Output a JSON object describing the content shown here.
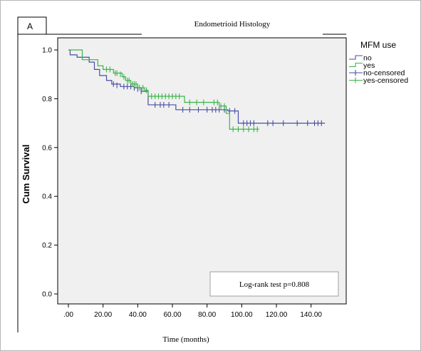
{
  "chart_data": {
    "type": "line",
    "panel_label": "A",
    "title": "Endometrioid  Histology",
    "xlabel": "Time (months)",
    "ylabel": "Cum Survival",
    "xlim": [
      0,
      150
    ],
    "ylim": [
      0,
      1.0
    ],
    "x_ticks": [
      0,
      20,
      40,
      60,
      80,
      100,
      120,
      140
    ],
    "x_tick_labels": [
      ".00",
      "20.00",
      "40.00",
      "60.00",
      "80.00",
      "100.00",
      "120.00",
      "140.00"
    ],
    "y_ticks": [
      0,
      0.2,
      0.4,
      0.6,
      0.8,
      1.0
    ],
    "y_tick_labels": [
      "0.0",
      "0.2",
      "0.4",
      "0.6",
      "0.8",
      "1.0"
    ],
    "grid": false,
    "legend": {
      "title": "MFM use",
      "placement": "right",
      "entries": [
        "no",
        "yes",
        "no-censored",
        "yes-censored"
      ]
    },
    "annotation": "Log-rank test p=0.808",
    "colors": {
      "no": "#4a4ea2",
      "yes": "#3cb44b",
      "plot_bg": "#f0f0f0"
    },
    "series": [
      {
        "name": "no",
        "steps": [
          [
            0,
            1.0
          ],
          [
            1,
            0.98
          ],
          [
            5,
            0.97
          ],
          [
            12,
            0.95
          ],
          [
            15,
            0.92
          ],
          [
            18,
            0.895
          ],
          [
            22,
            0.875
          ],
          [
            25,
            0.86
          ],
          [
            30,
            0.85
          ],
          [
            38,
            0.845
          ],
          [
            42,
            0.83
          ],
          [
            46,
            0.775
          ],
          [
            62,
            0.755
          ],
          [
            92,
            0.75
          ],
          [
            98,
            0.7
          ],
          [
            148,
            0.7
          ]
        ],
        "censored": [
          [
            26,
            0.86
          ],
          [
            28,
            0.855
          ],
          [
            32,
            0.85
          ],
          [
            34,
            0.85
          ],
          [
            36,
            0.85
          ],
          [
            38,
            0.845
          ],
          [
            40,
            0.84
          ],
          [
            42,
            0.83
          ],
          [
            50,
            0.775
          ],
          [
            53,
            0.775
          ],
          [
            55,
            0.775
          ],
          [
            58,
            0.775
          ],
          [
            66,
            0.755
          ],
          [
            70,
            0.755
          ],
          [
            75,
            0.755
          ],
          [
            80,
            0.755
          ],
          [
            83,
            0.755
          ],
          [
            85,
            0.755
          ],
          [
            87,
            0.755
          ],
          [
            90,
            0.755
          ],
          [
            93,
            0.75
          ],
          [
            96,
            0.75
          ],
          [
            101,
            0.7
          ],
          [
            103,
            0.7
          ],
          [
            105,
            0.7
          ],
          [
            107,
            0.7
          ],
          [
            115,
            0.7
          ],
          [
            118,
            0.7
          ],
          [
            124,
            0.7
          ],
          [
            132,
            0.7
          ],
          [
            138,
            0.7
          ],
          [
            142,
            0.7
          ],
          [
            144,
            0.7
          ],
          [
            146,
            0.7
          ]
        ]
      },
      {
        "name": "yes",
        "steps": [
          [
            0,
            1.0
          ],
          [
            8,
            0.96
          ],
          [
            17,
            0.935
          ],
          [
            20,
            0.92
          ],
          [
            26,
            0.905
          ],
          [
            31,
            0.89
          ],
          [
            33,
            0.875
          ],
          [
            36,
            0.86
          ],
          [
            40,
            0.845
          ],
          [
            44,
            0.835
          ],
          [
            46,
            0.81
          ],
          [
            67,
            0.785
          ],
          [
            87,
            0.77
          ],
          [
            91,
            0.74
          ],
          [
            93,
            0.675
          ],
          [
            110,
            0.675
          ]
        ],
        "censored": [
          [
            22,
            0.92
          ],
          [
            24,
            0.92
          ],
          [
            27,
            0.905
          ],
          [
            28,
            0.905
          ],
          [
            30,
            0.9
          ],
          [
            32,
            0.89
          ],
          [
            34,
            0.875
          ],
          [
            35,
            0.875
          ],
          [
            37,
            0.86
          ],
          [
            38,
            0.86
          ],
          [
            39,
            0.86
          ],
          [
            41,
            0.845
          ],
          [
            43,
            0.845
          ],
          [
            45,
            0.835
          ],
          [
            48,
            0.81
          ],
          [
            50,
            0.81
          ],
          [
            52,
            0.81
          ],
          [
            54,
            0.81
          ],
          [
            56,
            0.81
          ],
          [
            58,
            0.81
          ],
          [
            60,
            0.81
          ],
          [
            62,
            0.81
          ],
          [
            64,
            0.81
          ],
          [
            70,
            0.785
          ],
          [
            74,
            0.785
          ],
          [
            78,
            0.785
          ],
          [
            84,
            0.785
          ],
          [
            86,
            0.785
          ],
          [
            88,
            0.77
          ],
          [
            90,
            0.77
          ],
          [
            95,
            0.675
          ],
          [
            98,
            0.675
          ],
          [
            101,
            0.675
          ],
          [
            104,
            0.675
          ],
          [
            107,
            0.675
          ],
          [
            109,
            0.675
          ]
        ]
      }
    ]
  }
}
